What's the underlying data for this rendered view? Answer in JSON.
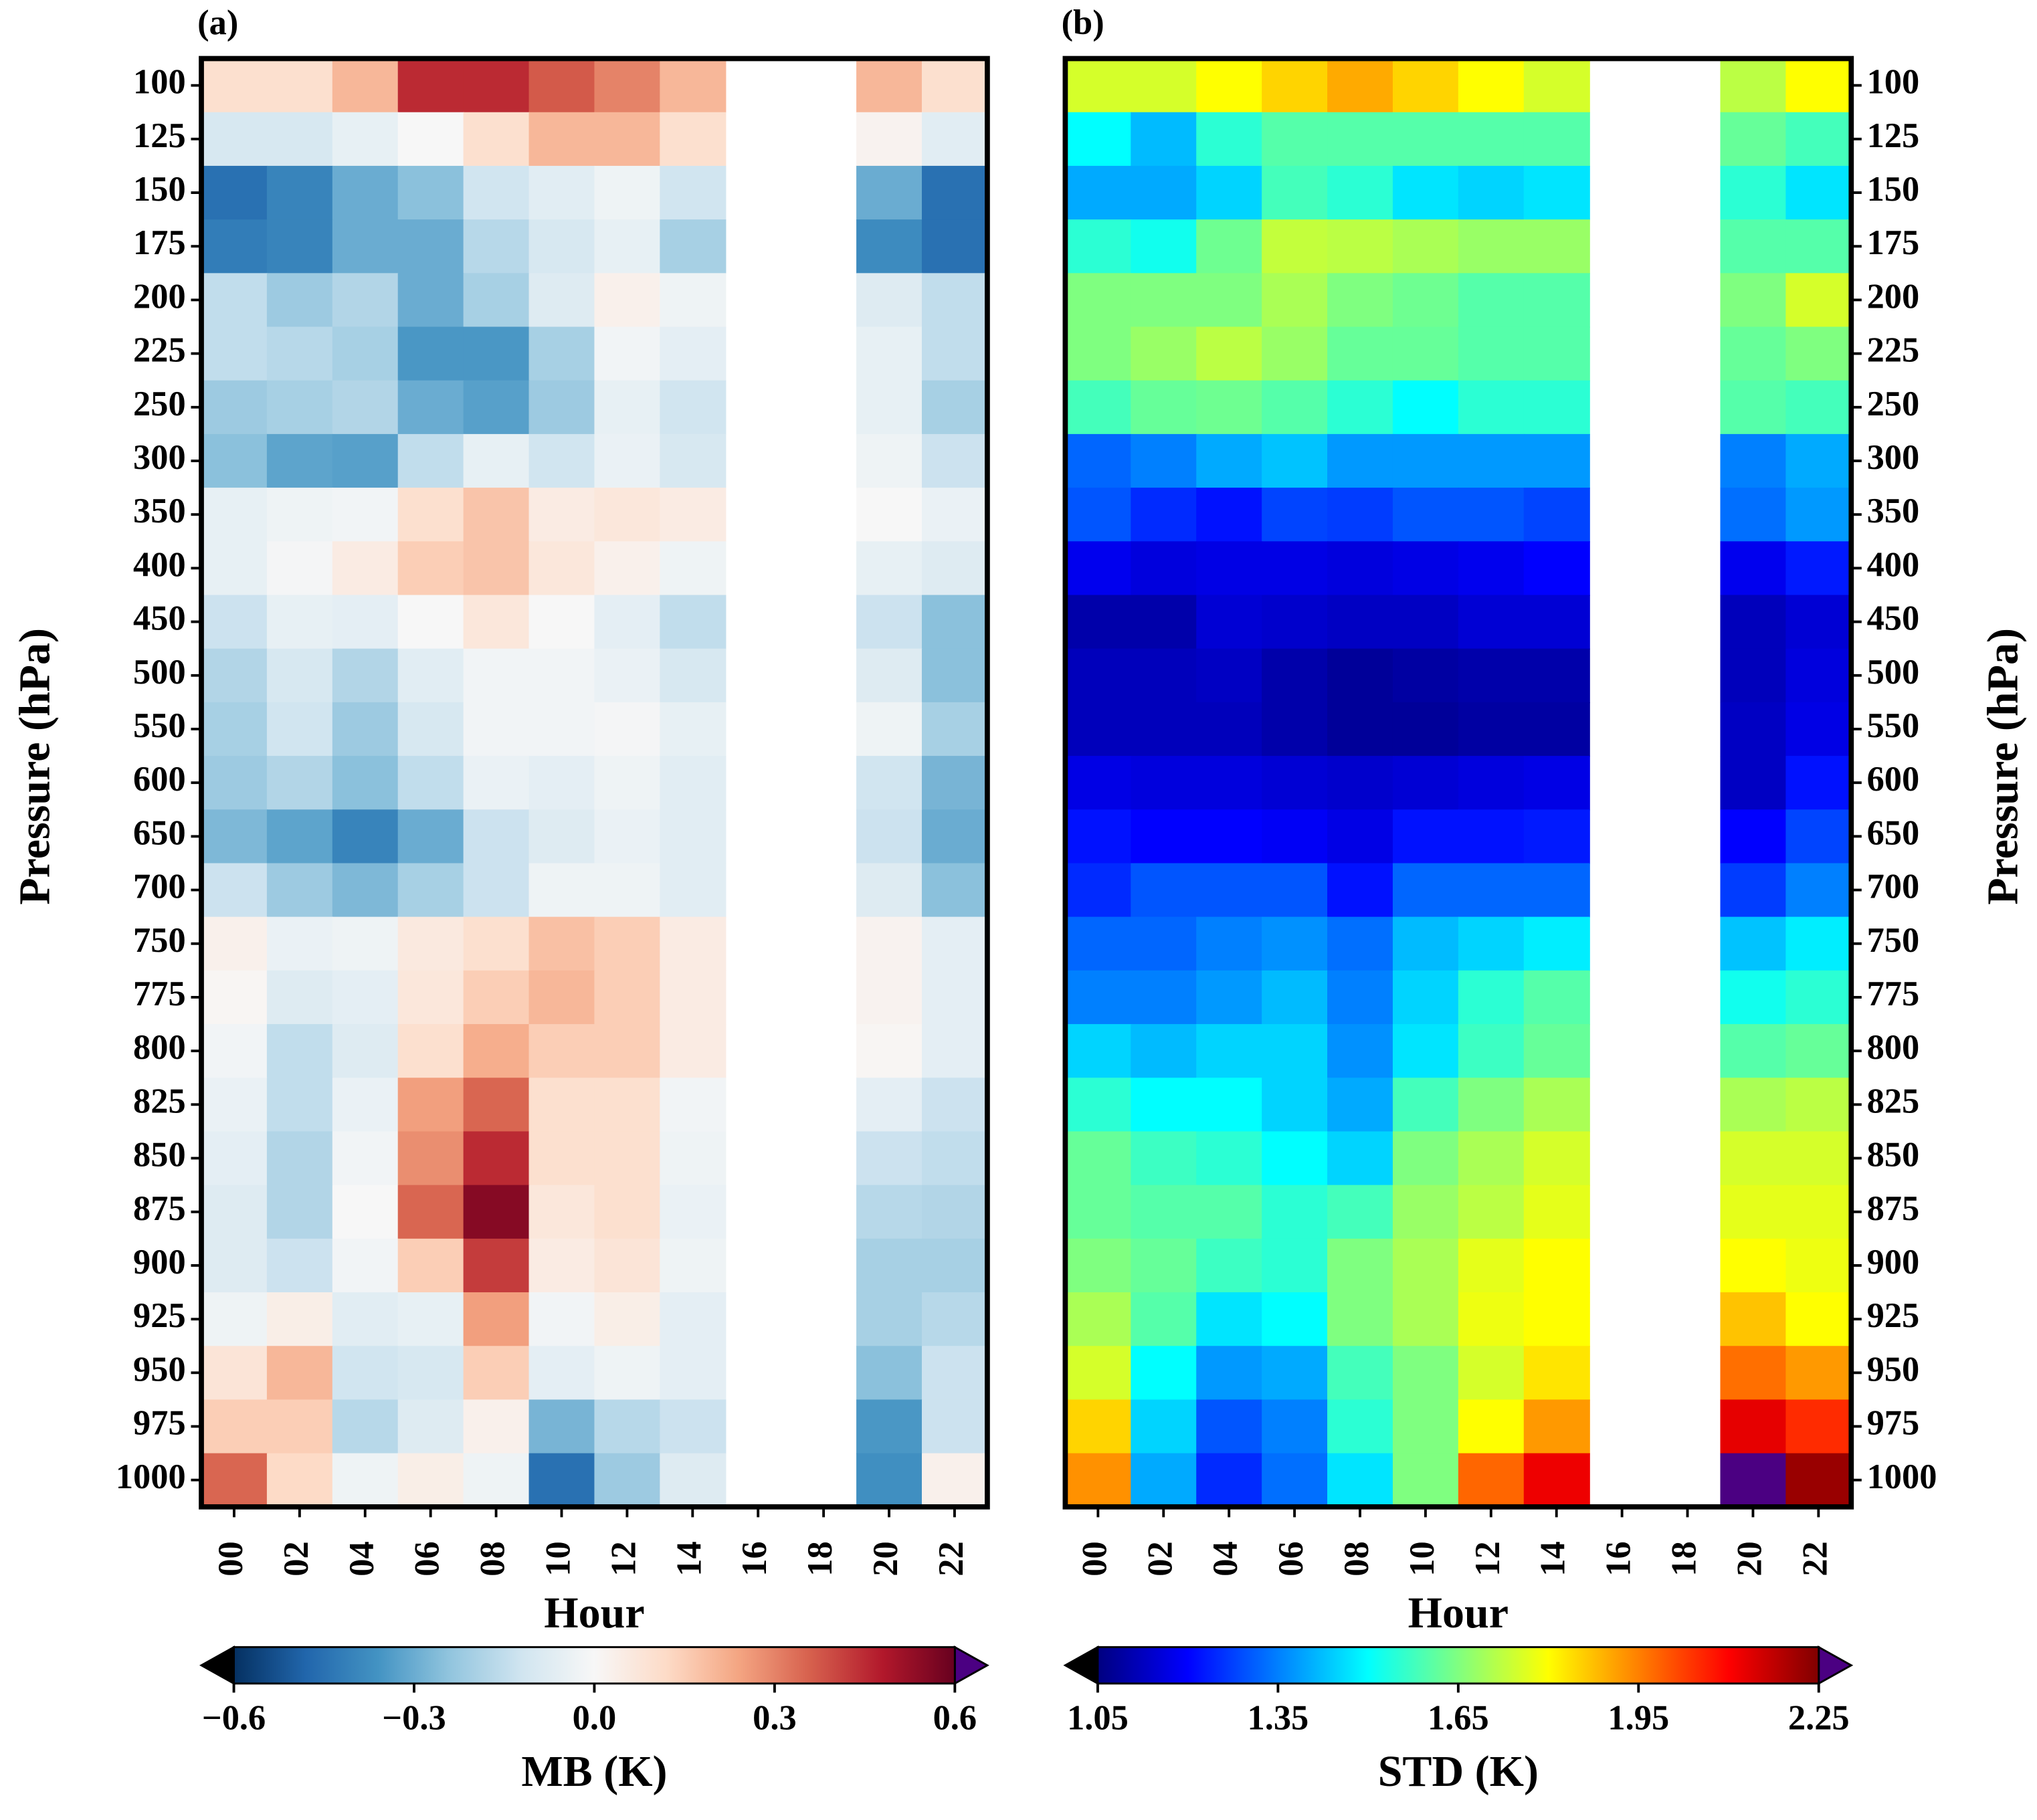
{
  "chart_data": [
    {
      "type": "heatmap",
      "panel_label": "(a)",
      "x_label": "Hour",
      "y_label": "Pressure (hPa)",
      "y_axis_side": "left",
      "colormap": "RdBu_r",
      "x": [
        "00",
        "02",
        "04",
        "06",
        "08",
        "10",
        "12",
        "14",
        "16",
        "18",
        "20",
        "22"
      ],
      "y": [
        "100",
        "125",
        "150",
        "175",
        "200",
        "225",
        "250",
        "300",
        "350",
        "400",
        "450",
        "500",
        "550",
        "600",
        "650",
        "700",
        "750",
        "775",
        "800",
        "825",
        "850",
        "875",
        "900",
        "925",
        "950",
        "975",
        "1000"
      ],
      "values": [
        [
          0.1,
          0.1,
          0.2,
          0.45,
          0.45,
          0.37,
          0.3,
          0.2,
          null,
          null,
          0.2,
          0.1
        ],
        [
          -0.1,
          -0.1,
          -0.05,
          0.0,
          0.1,
          0.2,
          0.2,
          0.1,
          null,
          null,
          0.02,
          -0.07
        ],
        [
          -0.45,
          -0.4,
          -0.3,
          -0.25,
          -0.12,
          -0.07,
          -0.03,
          -0.12,
          null,
          null,
          -0.3,
          -0.45
        ],
        [
          -0.42,
          -0.4,
          -0.3,
          -0.3,
          -0.17,
          -0.1,
          -0.05,
          -0.2,
          null,
          null,
          -0.38,
          -0.45
        ],
        [
          -0.15,
          -0.22,
          -0.18,
          -0.3,
          -0.2,
          -0.08,
          0.03,
          -0.03,
          null,
          null,
          -0.08,
          -0.15
        ],
        [
          -0.15,
          -0.17,
          -0.2,
          -0.35,
          -0.35,
          -0.2,
          -0.02,
          -0.06,
          null,
          null,
          -0.05,
          -0.15
        ],
        [
          -0.22,
          -0.2,
          -0.18,
          -0.3,
          -0.33,
          -0.22,
          -0.05,
          -0.12,
          null,
          null,
          -0.05,
          -0.2
        ],
        [
          -0.25,
          -0.32,
          -0.33,
          -0.15,
          -0.05,
          -0.12,
          -0.04,
          -0.1,
          null,
          null,
          -0.03,
          -0.13
        ],
        [
          -0.05,
          -0.03,
          -0.02,
          0.1,
          0.17,
          0.05,
          0.07,
          0.05,
          null,
          null,
          0.0,
          -0.04
        ],
        [
          -0.05,
          -0.01,
          0.05,
          0.15,
          0.17,
          0.07,
          0.03,
          -0.03,
          null,
          null,
          -0.05,
          -0.08
        ],
        [
          -0.13,
          -0.05,
          -0.06,
          0.0,
          0.07,
          0.0,
          -0.06,
          -0.15,
          null,
          null,
          -0.13,
          -0.25
        ],
        [
          -0.18,
          -0.1,
          -0.18,
          -0.07,
          -0.02,
          -0.02,
          -0.04,
          -0.1,
          null,
          null,
          -0.08,
          -0.25
        ],
        [
          -0.2,
          -0.12,
          -0.22,
          -0.1,
          -0.02,
          -0.02,
          -0.01,
          -0.05,
          null,
          null,
          -0.03,
          -0.2
        ],
        [
          -0.22,
          -0.18,
          -0.25,
          -0.15,
          -0.04,
          -0.06,
          -0.03,
          -0.07,
          null,
          null,
          -0.12,
          -0.28
        ],
        [
          -0.27,
          -0.32,
          -0.4,
          -0.3,
          -0.13,
          -0.08,
          -0.04,
          -0.07,
          null,
          null,
          -0.13,
          -0.3
        ],
        [
          -0.13,
          -0.22,
          -0.27,
          -0.2,
          -0.13,
          -0.03,
          -0.03,
          -0.07,
          null,
          null,
          -0.08,
          -0.25
        ],
        [
          0.03,
          -0.04,
          -0.03,
          0.06,
          0.1,
          0.18,
          0.15,
          0.05,
          null,
          null,
          0.02,
          -0.06
        ],
        [
          0.01,
          -0.08,
          -0.06,
          0.07,
          0.15,
          0.2,
          0.15,
          0.05,
          null,
          null,
          0.02,
          -0.06
        ],
        [
          -0.02,
          -0.15,
          -0.08,
          0.1,
          0.22,
          0.15,
          0.15,
          0.05,
          null,
          null,
          0.01,
          -0.06
        ],
        [
          -0.04,
          -0.15,
          -0.04,
          0.25,
          0.35,
          0.1,
          0.1,
          -0.02,
          null,
          null,
          -0.06,
          -0.13
        ],
        [
          -0.06,
          -0.18,
          -0.02,
          0.28,
          0.45,
          0.1,
          0.1,
          -0.03,
          null,
          null,
          -0.13,
          -0.15
        ],
        [
          -0.08,
          -0.18,
          0.0,
          0.35,
          0.55,
          0.07,
          0.1,
          -0.04,
          null,
          null,
          -0.17,
          -0.18
        ],
        [
          -0.08,
          -0.13,
          -0.02,
          0.15,
          0.42,
          0.05,
          0.08,
          -0.03,
          null,
          null,
          -0.2,
          -0.2
        ],
        [
          -0.03,
          0.04,
          -0.07,
          -0.05,
          0.25,
          -0.02,
          0.04,
          -0.06,
          null,
          null,
          -0.2,
          -0.17
        ],
        [
          0.08,
          0.2,
          -0.12,
          -0.1,
          0.15,
          -0.06,
          -0.03,
          -0.06,
          null,
          null,
          -0.25,
          -0.13
        ],
        [
          0.15,
          0.15,
          -0.17,
          -0.08,
          0.03,
          -0.28,
          -0.17,
          -0.13,
          null,
          null,
          -0.35,
          -0.13
        ],
        [
          0.35,
          0.12,
          -0.03,
          0.04,
          -0.03,
          -0.45,
          -0.22,
          -0.08,
          null,
          null,
          -0.37,
          0.03
        ]
      ],
      "colorbar": {
        "label": "MB (K)",
        "lim": [
          -0.6,
          0.6
        ],
        "under_color": "#000000",
        "over_color": "#4b0082",
        "ticks": [
          {
            "value": -0.6,
            "label": "−0.6"
          },
          {
            "value": -0.3,
            "label": "−0.3"
          },
          {
            "value": 0,
            "label": "0.0"
          },
          0.3,
          0.6
        ]
      }
    },
    {
      "type": "heatmap",
      "panel_label": "(b)",
      "x_label": "Hour",
      "y_label": "Pressure (hPa)",
      "y_axis_side": "right",
      "colormap": "jet",
      "x": [
        "00",
        "02",
        "04",
        "06",
        "08",
        "10",
        "12",
        "14",
        "16",
        "18",
        "20",
        "22"
      ],
      "y": [
        "100",
        "125",
        "150",
        "175",
        "200",
        "225",
        "250",
        "300",
        "350",
        "400",
        "450",
        "500",
        "550",
        "600",
        "650",
        "700",
        "750",
        "775",
        "800",
        "825",
        "850",
        "875",
        "900",
        "925",
        "950",
        "975",
        "1000"
      ],
      "values": [
        [
          1.75,
          1.75,
          1.8,
          1.85,
          1.9,
          1.85,
          1.8,
          1.75,
          null,
          null,
          1.72,
          1.8
        ],
        [
          1.5,
          1.42,
          1.55,
          1.6,
          1.6,
          1.6,
          1.6,
          1.6,
          null,
          null,
          1.62,
          1.58
        ],
        [
          1.4,
          1.4,
          1.45,
          1.58,
          1.55,
          1.47,
          1.45,
          1.47,
          null,
          null,
          1.55,
          1.47
        ],
        [
          1.55,
          1.52,
          1.63,
          1.73,
          1.72,
          1.7,
          1.68,
          1.68,
          null,
          null,
          1.6,
          1.6
        ],
        [
          1.65,
          1.65,
          1.65,
          1.7,
          1.65,
          1.63,
          1.6,
          1.6,
          null,
          null,
          1.65,
          1.75
        ],
        [
          1.65,
          1.68,
          1.72,
          1.68,
          1.62,
          1.62,
          1.6,
          1.6,
          null,
          null,
          1.62,
          1.65
        ],
        [
          1.58,
          1.62,
          1.63,
          1.6,
          1.55,
          1.5,
          1.55,
          1.55,
          null,
          null,
          1.6,
          1.58
        ],
        [
          1.32,
          1.35,
          1.4,
          1.43,
          1.38,
          1.38,
          1.38,
          1.38,
          null,
          null,
          1.35,
          1.4
        ],
        [
          1.3,
          1.25,
          1.22,
          1.28,
          1.27,
          1.3,
          1.3,
          1.28,
          null,
          null,
          1.33,
          1.38
        ],
        [
          1.18,
          1.16,
          1.17,
          1.17,
          1.16,
          1.17,
          1.18,
          1.2,
          null,
          null,
          1.18,
          1.23
        ],
        [
          1.1,
          1.1,
          1.15,
          1.14,
          1.13,
          1.13,
          1.15,
          1.15,
          null,
          null,
          1.12,
          1.15
        ],
        [
          1.12,
          1.12,
          1.13,
          1.1,
          1.08,
          1.09,
          1.1,
          1.1,
          null,
          null,
          1.12,
          1.16
        ],
        [
          1.12,
          1.12,
          1.12,
          1.1,
          1.08,
          1.08,
          1.09,
          1.09,
          null,
          null,
          1.13,
          1.17
        ],
        [
          1.17,
          1.16,
          1.16,
          1.15,
          1.14,
          1.15,
          1.16,
          1.17,
          null,
          null,
          1.13,
          1.22
        ],
        [
          1.22,
          1.2,
          1.2,
          1.19,
          1.17,
          1.22,
          1.22,
          1.23,
          null,
          null,
          1.2,
          1.28
        ],
        [
          1.25,
          1.3,
          1.3,
          1.3,
          1.22,
          1.32,
          1.32,
          1.32,
          null,
          null,
          1.27,
          1.35
        ],
        [
          1.32,
          1.32,
          1.35,
          1.37,
          1.33,
          1.42,
          1.45,
          1.48,
          null,
          null,
          1.43,
          1.48
        ],
        [
          1.35,
          1.35,
          1.38,
          1.42,
          1.35,
          1.45,
          1.55,
          1.6,
          null,
          null,
          1.52,
          1.55
        ],
        [
          1.45,
          1.42,
          1.45,
          1.45,
          1.37,
          1.47,
          1.57,
          1.62,
          null,
          null,
          1.6,
          1.62
        ],
        [
          1.55,
          1.5,
          1.5,
          1.45,
          1.4,
          1.58,
          1.65,
          1.7,
          null,
          null,
          1.7,
          1.72
        ],
        [
          1.62,
          1.57,
          1.55,
          1.5,
          1.45,
          1.65,
          1.7,
          1.75,
          null,
          null,
          1.75,
          1.75
        ],
        [
          1.62,
          1.6,
          1.6,
          1.55,
          1.58,
          1.68,
          1.72,
          1.77,
          null,
          null,
          1.77,
          1.77
        ],
        [
          1.65,
          1.62,
          1.57,
          1.55,
          1.65,
          1.7,
          1.77,
          1.8,
          null,
          null,
          1.8,
          1.78
        ],
        [
          1.7,
          1.6,
          1.47,
          1.5,
          1.65,
          1.7,
          1.78,
          1.8,
          null,
          null,
          1.87,
          1.8
        ],
        [
          1.75,
          1.5,
          1.38,
          1.4,
          1.58,
          1.65,
          1.75,
          1.83,
          null,
          null,
          1.97,
          1.92
        ],
        [
          1.85,
          1.45,
          1.3,
          1.35,
          1.55,
          1.65,
          1.8,
          1.92,
          null,
          null,
          2.13,
          2.05
        ],
        [
          1.93,
          1.4,
          1.25,
          1.33,
          1.47,
          1.65,
          1.98,
          2.12,
          null,
          null,
          2.3,
          2.22
        ]
      ],
      "colorbar": {
        "label": "STD (K)",
        "lim": [
          1.05,
          2.25
        ],
        "under_color": "#000000",
        "over_color": "#4b0082",
        "ticks": [
          1.05,
          1.35,
          1.65,
          1.95,
          2.25
        ]
      }
    }
  ]
}
